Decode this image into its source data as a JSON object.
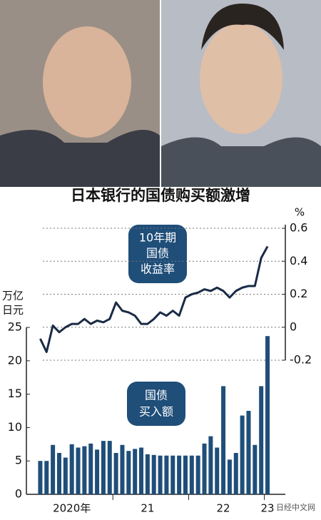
{
  "chart_data": {
    "type": "bar",
    "title": "日本银行的国债购买额激增",
    "categories": [
      null,
      null,
      null,
      null,
      null,
      "2020年",
      null,
      null,
      null,
      null,
      null,
      null,
      null,
      null,
      null,
      null,
      null,
      "21",
      null,
      null,
      null,
      null,
      null,
      null,
      null,
      null,
      null,
      null,
      null,
      "22",
      null,
      null,
      null,
      null,
      null,
      null,
      "23"
    ],
    "series": [
      {
        "type": "bar",
        "axis": "y",
        "color": "#1f4e79",
        "values": [
          5,
          5,
          7.4,
          6.2,
          5.5,
          7.5,
          7,
          7.2,
          7.6,
          6.7,
          8,
          8,
          6.2,
          7.4,
          6.5,
          6.8,
          7,
          6,
          5.9,
          5.8,
          5.8,
          5.8,
          5.8,
          5.8,
          5.8,
          5.8,
          7.6,
          8.7,
          7,
          16.2,
          5.2,
          6.2,
          11.8,
          12.5,
          7.4,
          16.2,
          23.7
        ]
      },
      {
        "type": "line",
        "axis": "y2",
        "color": "#1a2b45",
        "values": [
          -0.07,
          -0.15,
          0.01,
          -0.03,
          0.0,
          0.02,
          0.02,
          0.05,
          0.02,
          0.04,
          0.03,
          0.05,
          0.15,
          0.1,
          0.09,
          0.07,
          0.02,
          0.02,
          0.05,
          0.09,
          0.07,
          0.1,
          0.07,
          0.18,
          0.2,
          0.21,
          0.23,
          0.22,
          0.24,
          0.22,
          0.18,
          0.22,
          0.24,
          0.25,
          0.25,
          0.42,
          0.49
        ]
      }
    ],
    "ylim": [
      0,
      25
    ],
    "yticks": [
      0,
      5,
      10,
      15,
      20,
      25
    ],
    "ylabel": [
      "万亿",
      "日元"
    ],
    "y2lim": [
      -0.2,
      0.6
    ],
    "y2ticks": [
      -0.2,
      0,
      0.2,
      0.4,
      0.6
    ],
    "y2label": "%",
    "y2grid": true,
    "annotations": [
      [
        "10年期",
        "国债",
        "收益率"
      ],
      [
        "国债",
        "买入额"
      ]
    ],
    "source": "日经中文网"
  }
}
